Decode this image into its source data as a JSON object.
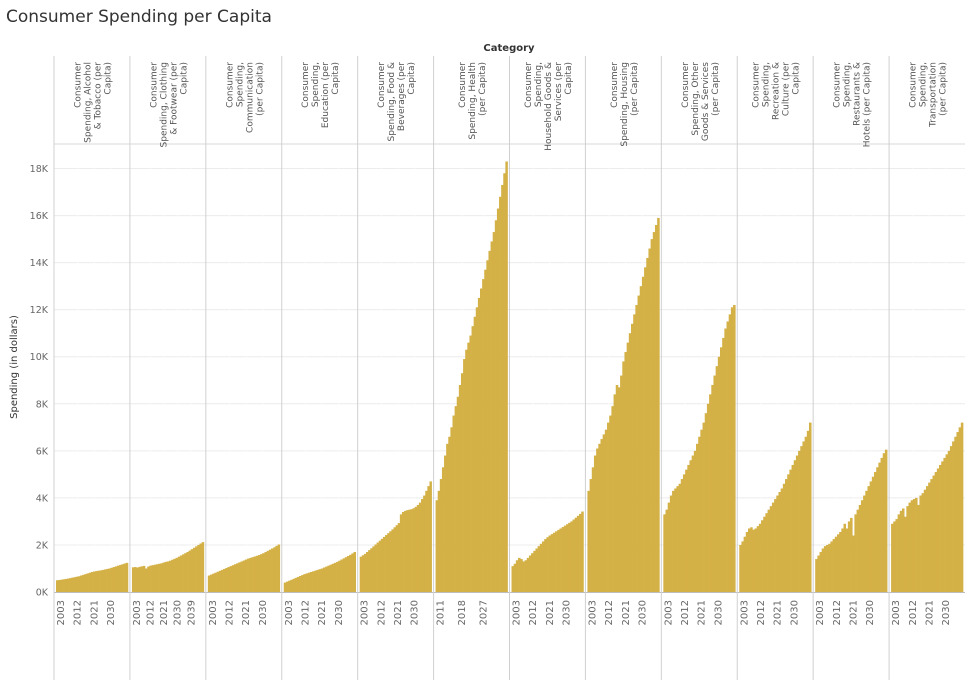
{
  "page": {
    "title": "Consumer Spending per Capita"
  },
  "chart_data": {
    "type": "bar",
    "title": "Consumer Spending per Capita",
    "column_header": "Category",
    "ylabel": "Spending (in dollars)",
    "ylim": [
      0,
      19000
    ],
    "y_ticks": [
      0,
      2000,
      4000,
      6000,
      8000,
      10000,
      12000,
      14000,
      16000,
      18000
    ],
    "y_tick_labels": [
      "0K",
      "2K",
      "4K",
      "6K",
      "8K",
      "10K",
      "12K",
      "14K",
      "16K",
      "18K"
    ],
    "bar_color": "#D4B146",
    "grid": true,
    "panels": [
      {
        "category": "Consumer Spending, Alcohol & Tobacco (per Capita)",
        "header_lines": [
          "Consumer",
          "Spending, Alcohol",
          "& Tobacco (per",
          "Capita)"
        ],
        "x_tick_labels": [
          "2003",
          "2012",
          "2021",
          "2030"
        ],
        "values": [
          500,
          510,
          525,
          540,
          555,
          570,
          590,
          610,
          630,
          650,
          670,
          700,
          730,
          760,
          790,
          820,
          850,
          870,
          890,
          905,
          920,
          940,
          960,
          980,
          1000,
          1030,
          1060,
          1090,
          1120,
          1150,
          1180,
          1210,
          1240
        ]
      },
      {
        "category": "Consumer Spending, Clothing & Footwear (per Capita)",
        "header_lines": [
          "Consumer",
          "Spending, Clothing",
          "& Footwear (per",
          "Capita)"
        ],
        "x_tick_labels": [
          "2003",
          "2012",
          "2021",
          "2030",
          "2039"
        ],
        "values": [
          1050,
          1060,
          1040,
          1070,
          1090,
          1110,
          1000,
          1080,
          1120,
          1140,
          1160,
          1180,
          1200,
          1220,
          1250,
          1280,
          1300,
          1330,
          1370,
          1410,
          1450,
          1500,
          1550,
          1600,
          1650,
          1700,
          1760,
          1820,
          1880,
          1940,
          2000,
          2060,
          2120
        ]
      },
      {
        "category": "Consumer Spending, Communication (per Capita)",
        "header_lines": [
          "Consumer",
          "Spending,",
          "Communication",
          "(per Capita)"
        ],
        "x_tick_labels": [
          "2003",
          "2012",
          "2021",
          "2030"
        ],
        "values": [
          700,
          740,
          780,
          820,
          860,
          900,
          940,
          980,
          1020,
          1060,
          1100,
          1140,
          1180,
          1220,
          1260,
          1300,
          1340,
          1380,
          1420,
          1450,
          1480,
          1510,
          1540,
          1570,
          1610,
          1650,
          1700,
          1750,
          1800,
          1850,
          1900,
          1960,
          2020
        ]
      },
      {
        "category": "Consumer Spending, Education (per Capita)",
        "header_lines": [
          "Consumer",
          "Spending,",
          "Education (per",
          "Capita)"
        ],
        "x_tick_labels": [
          "2003",
          "2012",
          "2021",
          "2030"
        ],
        "values": [
          400,
          440,
          480,
          520,
          560,
          600,
          640,
          680,
          720,
          760,
          790,
          820,
          850,
          880,
          910,
          940,
          970,
          1000,
          1040,
          1080,
          1120,
          1160,
          1200,
          1240,
          1280,
          1330,
          1380,
          1430,
          1480,
          1530,
          1580,
          1640,
          1700
        ]
      },
      {
        "category": "Consumer Spending, Food & Beverages (per Capita)",
        "header_lines": [
          "Consumer",
          "Spending, Food &",
          "Beverages (per",
          "Capita)"
        ],
        "x_tick_labels": [
          "2003",
          "2012",
          "2021",
          "2030"
        ],
        "values": [
          1500,
          1560,
          1620,
          1700,
          1780,
          1860,
          1940,
          2020,
          2100,
          2180,
          2260,
          2340,
          2420,
          2500,
          2580,
          2660,
          2750,
          2840,
          2930,
          3300,
          3400,
          3450,
          3480,
          3500,
          3520,
          3560,
          3620,
          3700,
          3800,
          3950,
          4100,
          4300,
          4500,
          4700
        ]
      },
      {
        "category": "Consumer Spending, Health (per Capita)",
        "header_lines": [
          "Consumer",
          "Spending, Health",
          "(per Capita)"
        ],
        "x_tick_labels": [
          "2011",
          "2018",
          "2027"
        ],
        "values": [
          3900,
          4300,
          4800,
          5300,
          5800,
          6300,
          6600,
          7000,
          7500,
          7900,
          8300,
          8800,
          9300,
          9900,
          10300,
          10600,
          10900,
          11300,
          11700,
          12100,
          12500,
          12900,
          13300,
          13700,
          14100,
          14500,
          14900,
          15300,
          15800,
          16300,
          16800,
          17300,
          17800,
          18300
        ]
      },
      {
        "category": "Consumer Spending, Household Goods & Services (per Capita)",
        "header_lines": [
          "Consumer",
          "Spending,",
          "Household Goods &",
          "Services (per",
          "Capita)"
        ],
        "x_tick_labels": [
          "2003",
          "2012",
          "2021",
          "2030"
        ],
        "values": [
          1100,
          1200,
          1350,
          1450,
          1400,
          1300,
          1350,
          1450,
          1550,
          1650,
          1750,
          1850,
          1950,
          2050,
          2150,
          2250,
          2330,
          2400,
          2460,
          2520,
          2580,
          2640,
          2700,
          2760,
          2820,
          2880,
          2940,
          3000,
          3080,
          3160,
          3240,
          3320,
          3420
        ]
      },
      {
        "category": "Consumer Spending, Housing (per Capita)",
        "header_lines": [
          "Consumer",
          "Spending, Housing",
          "(per Capita)"
        ],
        "x_tick_labels": [
          "2003",
          "2012",
          "2021",
          "2030"
        ],
        "values": [
          4300,
          4800,
          5300,
          5800,
          6100,
          6300,
          6500,
          6700,
          6900,
          7200,
          7500,
          7900,
          8400,
          8800,
          8700,
          9200,
          9800,
          10200,
          10600,
          11000,
          11400,
          11800,
          12200,
          12600,
          13000,
          13400,
          13800,
          14200,
          14600,
          15000,
          15300,
          15600,
          15900
        ]
      },
      {
        "category": "Consumer Spending, Other Goods & Services (per Capita)",
        "header_lines": [
          "Consumer",
          "Spending, Other",
          "Goods & Services",
          "(per Capita)"
        ],
        "x_tick_labels": [
          "2003",
          "2012",
          "2021",
          "2030"
        ],
        "values": [
          3300,
          3500,
          3800,
          4100,
          4300,
          4400,
          4500,
          4600,
          4800,
          5000,
          5200,
          5400,
          5600,
          5800,
          6000,
          6300,
          6600,
          6900,
          7200,
          7600,
          8000,
          8400,
          8800,
          9200,
          9600,
          10000,
          10400,
          10800,
          11200,
          11500,
          11800,
          12100,
          12200
        ]
      },
      {
        "category": "Consumer Spending, Recreation & Culture (per Capita)",
        "header_lines": [
          "Consumer",
          "Spending,",
          "Recreation &",
          "Culture (per",
          "Capita)"
        ],
        "x_tick_labels": [
          "2003",
          "2012",
          "2021",
          "2030"
        ],
        "values": [
          2000,
          2150,
          2350,
          2550,
          2700,
          2750,
          2650,
          2700,
          2800,
          2900,
          3050,
          3200,
          3350,
          3500,
          3650,
          3800,
          3950,
          4100,
          4250,
          4400,
          4600,
          4800,
          5000,
          5200,
          5400,
          5600,
          5800,
          6000,
          6200,
          6400,
          6600,
          6850,
          7200
        ]
      },
      {
        "category": "Consumer Spending, Restaurants & Hotels (per Capita)",
        "header_lines": [
          "Consumer",
          "Spending,",
          "Restaurants &",
          "Hotels (per Capita)"
        ],
        "x_tick_labels": [
          "2003",
          "2012",
          "2021",
          "2030"
        ],
        "values": [
          1400,
          1550,
          1700,
          1850,
          1950,
          2000,
          2050,
          2150,
          2250,
          2350,
          2450,
          2550,
          2700,
          2900,
          2700,
          3000,
          3150,
          2400,
          3300,
          3500,
          3700,
          3900,
          4100,
          4300,
          4500,
          4700,
          4900,
          5100,
          5300,
          5500,
          5700,
          5900,
          6050
        ]
      },
      {
        "category": "Consumer Spending, Transportation (per Capita)",
        "header_lines": [
          "Consumer",
          "Spending,",
          "Transportation",
          "(per Capita)"
        ],
        "x_tick_labels": [
          "2003",
          "2012",
          "2021",
          "2030"
        ],
        "values": [
          2900,
          3000,
          3100,
          3300,
          3450,
          3550,
          3200,
          3650,
          3800,
          3900,
          3950,
          4000,
          3700,
          4100,
          4200,
          4350,
          4500,
          4650,
          4800,
          4950,
          5100,
          5250,
          5400,
          5550,
          5700,
          5850,
          6000,
          6200,
          6400,
          6600,
          6800,
          7000,
          7200
        ]
      }
    ]
  }
}
